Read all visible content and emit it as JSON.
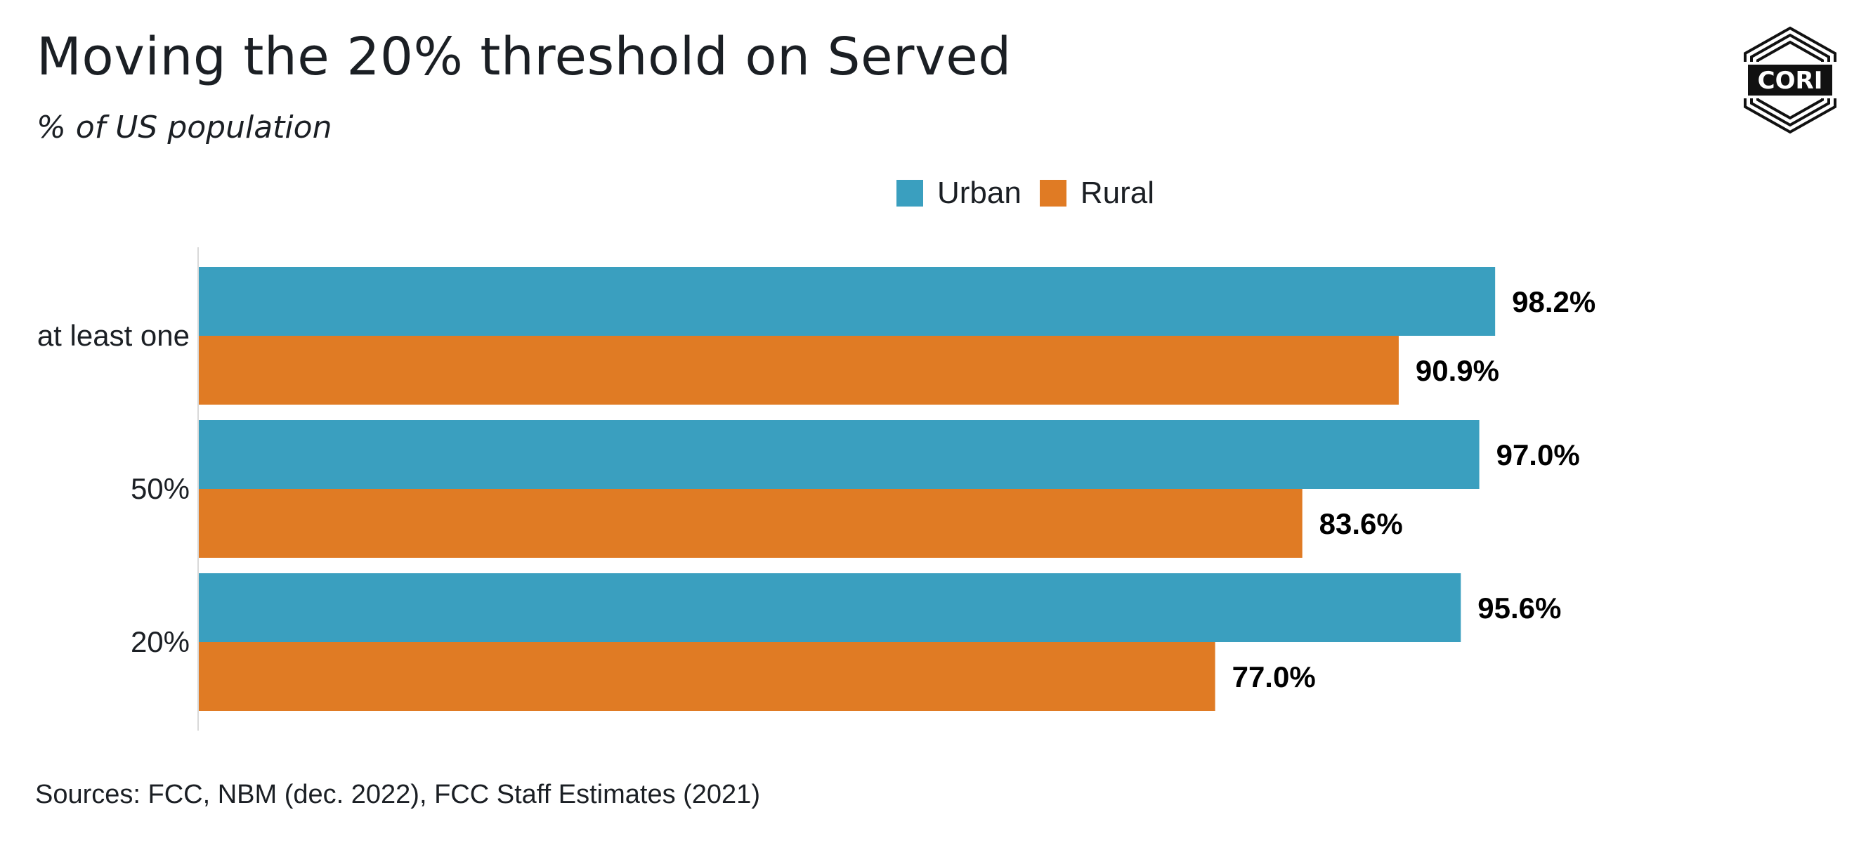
{
  "title": "Moving the 20% threshold on Served",
  "subtitle": "% of US population",
  "logo_text": "CORI",
  "source": "Sources: FCC, NBM (dec. 2022), FCC Staff Estimates (2021)",
  "colors": {
    "urban": "#3a9fbf",
    "rural": "#e07b24",
    "text": "#1b1f24",
    "axis": "#d9d9d9"
  },
  "chart_data": {
    "type": "bar",
    "orientation": "horizontal",
    "categories": [
      "at least one",
      "50%",
      "20%"
    ],
    "series": [
      {
        "name": "Urban",
        "values": [
          98.2,
          97.0,
          95.6
        ],
        "labels": [
          "98.2%",
          "97.0%",
          "95.6%"
        ]
      },
      {
        "name": "Rural",
        "values": [
          90.9,
          83.6,
          77.0
        ],
        "labels": [
          "90.9%",
          "83.6%",
          "77.0%"
        ]
      }
    ],
    "xlim": [
      0,
      100
    ],
    "legend": "top-center",
    "grid": false
  }
}
